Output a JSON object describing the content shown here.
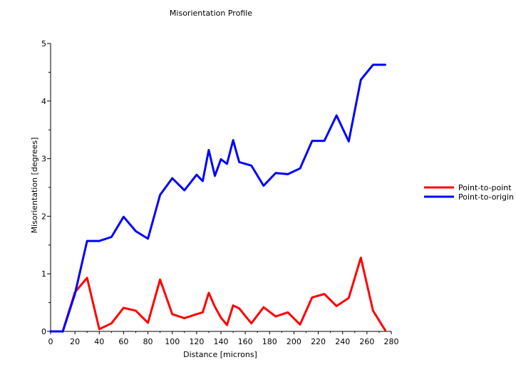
{
  "chart_data": {
    "type": "line",
    "title": "Misorientation Profile",
    "xlabel": "Distance [microns]",
    "ylabel": "Misorientation [degrees]",
    "xlim": [
      0,
      280
    ],
    "ylim": [
      0,
      5
    ],
    "xticks": [
      0,
      20,
      40,
      60,
      80,
      100,
      120,
      140,
      160,
      180,
      200,
      220,
      240,
      260,
      280
    ],
    "yticks": [
      0,
      1,
      2,
      3,
      4,
      5
    ],
    "grid": false,
    "legend_position": "right",
    "series": [
      {
        "name": "Point-to-point",
        "color": "#ff0000",
        "x": [
          0,
          10,
          20,
          30,
          40,
          50,
          60,
          70,
          80,
          90,
          100,
          110,
          120,
          125,
          130,
          135,
          140,
          145,
          150,
          155,
          165,
          175,
          185,
          195,
          205,
          215,
          225,
          235,
          245,
          255,
          265,
          275
        ],
        "y": [
          0,
          0,
          0.68,
          0.93,
          0.04,
          0.14,
          0.41,
          0.36,
          0.15,
          0.9,
          0.3,
          0.23,
          0.3,
          0.33,
          0.67,
          0.43,
          0.24,
          0.11,
          0.45,
          0.4,
          0.14,
          0.42,
          0.26,
          0.33,
          0.12,
          0.59,
          0.65,
          0.44,
          0.58,
          1.28,
          0.36,
          0.02
        ]
      },
      {
        "name": "Point-to-origin",
        "color": "#0000ff",
        "x": [
          0,
          10,
          20,
          30,
          40,
          50,
          60,
          70,
          80,
          90,
          100,
          110,
          120,
          125,
          130,
          135,
          140,
          145,
          150,
          155,
          165,
          175,
          185,
          195,
          205,
          215,
          225,
          235,
          245,
          255,
          265,
          275
        ],
        "y": [
          0,
          0,
          0.65,
          1.57,
          1.57,
          1.64,
          1.99,
          1.74,
          1.61,
          2.37,
          2.66,
          2.45,
          2.72,
          2.61,
          3.15,
          2.7,
          2.99,
          2.91,
          3.32,
          2.94,
          2.88,
          2.53,
          2.75,
          2.73,
          2.83,
          3.31,
          3.31,
          3.75,
          3.3,
          4.37,
          4.63,
          4.63
        ]
      }
    ]
  }
}
